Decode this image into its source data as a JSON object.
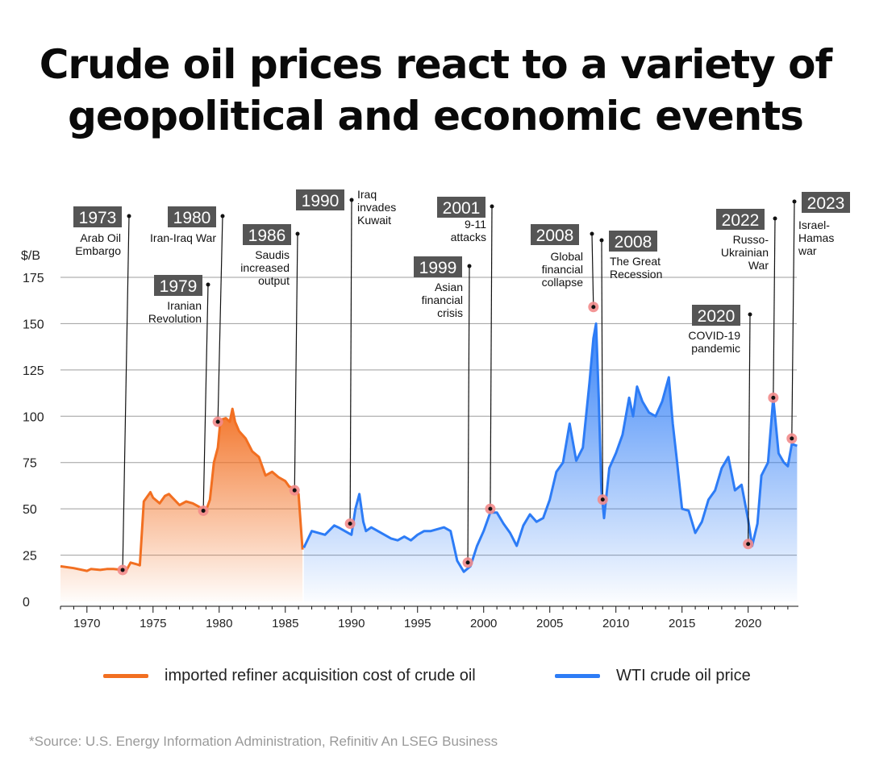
{
  "title": {
    "line1": "Crude oil prices react to a variety of",
    "line2": "geopolitical and economic events"
  },
  "source": "*Source: U.S. Energy Information Administration, Refinitiv An LSEG Business",
  "colors": {
    "orange": "#f26f21",
    "blue": "#2d7cf6",
    "marker": "#f28b8b",
    "tag_bg": "#555555",
    "grid": "#aaaaaa"
  },
  "chart_data": {
    "type": "area",
    "ylabel": "$/B",
    "xlabel": "",
    "xlim": [
      1968,
      2023.8
    ],
    "ylim": [
      0,
      175
    ],
    "yticks": [
      0,
      25,
      50,
      75,
      100,
      125,
      150,
      175
    ],
    "xticks": [
      1970,
      1975,
      1980,
      1985,
      1990,
      1995,
      2000,
      2005,
      2010,
      2015,
      2020
    ],
    "legend": [
      {
        "label": "imported refiner acquisition cost of crude oil",
        "color": "#f26f21"
      },
      {
        "label": "WTI crude oil price",
        "color": "#2d7cf6"
      }
    ],
    "series": [
      {
        "name": "imported refiner acquisition cost of crude oil",
        "color": "#f26f21",
        "x": [
          1968,
          1969,
          1970,
          1970.3,
          1971,
          1971.5,
          1972,
          1972.7,
          1973,
          1973.3,
          1973.8,
          1974,
          1974.3,
          1974.8,
          1975,
          1975.5,
          1975.9,
          1976.2,
          1977,
          1977.5,
          1978,
          1978.5,
          1979,
          1979.3,
          1979.6,
          1979.9,
          1980.1,
          1980.5,
          1980.8,
          1981,
          1981.2,
          1981.5,
          1982,
          1982.5,
          1983,
          1983.5,
          1984,
          1984.5,
          1985,
          1985.3,
          1985.7,
          1986,
          1986.3
        ],
        "y": [
          19,
          18,
          16.5,
          17.5,
          17,
          17.5,
          17.5,
          17,
          17,
          21,
          20,
          19.5,
          54,
          59,
          56,
          53,
          57,
          58,
          52,
          54,
          53,
          51,
          49,
          55,
          75,
          83,
          98,
          99,
          97,
          104,
          97,
          92,
          88,
          81,
          78,
          68,
          70,
          67,
          65,
          62,
          61,
          58,
          28
        ]
      },
      {
        "name": "WTI crude oil price",
        "color": "#2d7cf6",
        "x": [
          1986.4,
          1987,
          1988,
          1988.7,
          1989,
          1989.5,
          1990,
          1990.3,
          1990.6,
          1990.9,
          1991.1,
          1991.5,
          1992,
          1992.5,
          1993,
          1993.5,
          1994,
          1994.5,
          1995,
          1995.5,
          1996,
          1997,
          1997.5,
          1998,
          1998.5,
          1999,
          1999.5,
          2000,
          2000.5,
          2001,
          2001.5,
          2002,
          2002.5,
          2003,
          2003.5,
          2004,
          2004.5,
          2005,
          2005.5,
          2006,
          2006.5,
          2007,
          2007.5,
          2008,
          2008.3,
          2008.5,
          2008.7,
          2008.9,
          2009.1,
          2009.5,
          2010,
          2010.5,
          2011,
          2011.3,
          2011.6,
          2012,
          2012.5,
          2013,
          2013.5,
          2014,
          2014.3,
          2014.6,
          2015,
          2015.5,
          2016,
          2016.5,
          2017,
          2017.5,
          2018,
          2018.5,
          2019,
          2019.5,
          2020,
          2020.3,
          2020.7,
          2021,
          2021.5,
          2021.9,
          2022.3,
          2022.7,
          2023,
          2023.3,
          2023.7
        ],
        "y": [
          29,
          38,
          36,
          41,
          40,
          38,
          36,
          50,
          58,
          43,
          38,
          40,
          38,
          36,
          34,
          33,
          35,
          33,
          36,
          38,
          38,
          40,
          38,
          22,
          16,
          19,
          30,
          38,
          48,
          48,
          42,
          37,
          30,
          41,
          47,
          43,
          45,
          55,
          70,
          75,
          96,
          76,
          83,
          118,
          142,
          150,
          110,
          60,
          45,
          72,
          80,
          90,
          110,
          100,
          116,
          108,
          102,
          100,
          108,
          121,
          96,
          77,
          50,
          49,
          37,
          43,
          55,
          60,
          72,
          78,
          60,
          63,
          44,
          30,
          42,
          68,
          75,
          110,
          80,
          75,
          73,
          85,
          84
        ]
      }
    ],
    "annotations": [
      {
        "year": "1973",
        "label": [
          "Arab Oil",
          "Embargo"
        ],
        "x": 1972.7,
        "y": 17
      },
      {
        "year": "1979",
        "label": [
          "Iranian",
          "Revolution"
        ],
        "x": 1978.8,
        "y": 49
      },
      {
        "year": "1980",
        "label": [
          "Iran-Iraq War"
        ],
        "x": 1979.9,
        "y": 97
      },
      {
        "year": "1986",
        "label": [
          "Saudis",
          "increased",
          "output"
        ],
        "x": 1985.7,
        "y": 60
      },
      {
        "year": "1990",
        "label": [
          "Iraq",
          "invades",
          "Kuwait"
        ],
        "x": 1989.9,
        "y": 42
      },
      {
        "year": "1999",
        "label": [
          "Asian",
          "financial",
          "crisis"
        ],
        "x": 1998.8,
        "y": 21
      },
      {
        "year": "2001",
        "label": [
          "9-11",
          "attacks"
        ],
        "x": 2000.5,
        "y": 50
      },
      {
        "year": "2008",
        "label": [
          "Global",
          "financial",
          "collapse"
        ],
        "x": 2008.3,
        "y": 159
      },
      {
        "year": "2008",
        "label": [
          "The Great",
          "Recession"
        ],
        "x": 2009.0,
        "y": 55
      },
      {
        "year": "2020",
        "label": [
          "COVID-19",
          "pandemic"
        ],
        "x": 2020.0,
        "y": 31
      },
      {
        "year": "2022",
        "label": [
          "Russo-",
          "Ukrainian",
          "War"
        ],
        "x": 2021.9,
        "y": 110
      },
      {
        "year": "2023",
        "label": [
          "Israel-",
          "Hamas",
          "war"
        ],
        "x": 2023.3,
        "y": 88
      }
    ]
  }
}
